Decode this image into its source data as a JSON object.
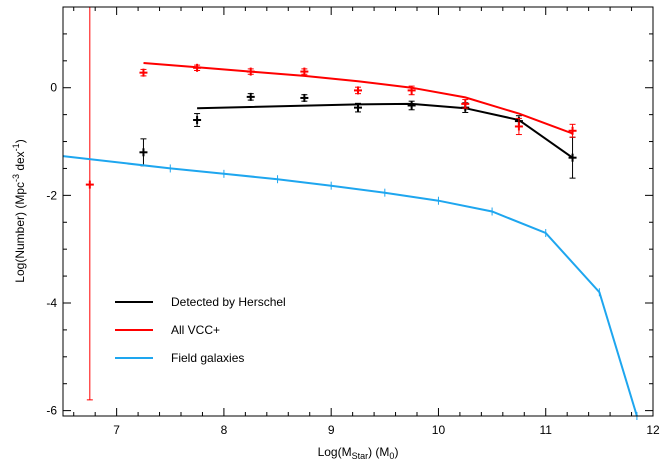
{
  "chart_data": {
    "type": "line",
    "title": "",
    "xlabel_main": "Log(M",
    "xlabel_sub": "Star",
    "xlabel_tail": ") (M",
    "xlabel_sun_sub": "0",
    "xlabel_end": ")",
    "ylabel_main": "Log(Number) (Mpc",
    "ylabel_sup1": "-3",
    "ylabel_mid": " dex",
    "ylabel_sup2": "-1",
    "ylabel_end": ")",
    "xlim": [
      6.5,
      12
    ],
    "ylim": [
      -6.1,
      1.5
    ],
    "xticks": [
      7,
      8,
      9,
      10,
      11,
      12
    ],
    "yticks": [
      -6,
      -4,
      -2,
      0
    ],
    "legend_position": "bottom-left",
    "series": [
      {
        "name": "Detected by Herschel",
        "color": "#000000",
        "line_x": [
          7.75,
          9.25,
          9.75,
          10.25,
          10.75,
          11.25
        ],
        "line_y": [
          -0.38,
          -0.31,
          -0.3,
          -0.38,
          -0.6,
          -1.3
        ],
        "points": [
          {
            "x": 7.25,
            "y": -1.2,
            "err": 0.25
          },
          {
            "x": 7.75,
            "y": -0.6,
            "err": 0.12
          },
          {
            "x": 8.25,
            "y": -0.17,
            "err": 0.06
          },
          {
            "x": 8.75,
            "y": -0.19,
            "err": 0.06
          },
          {
            "x": 9.25,
            "y": -0.37,
            "err": 0.08
          },
          {
            "x": 9.75,
            "y": -0.33,
            "err": 0.08
          },
          {
            "x": 10.25,
            "y": -0.37,
            "err": 0.09
          },
          {
            "x": 10.75,
            "y": -0.62,
            "err": 0.1
          },
          {
            "x": 11.25,
            "y": -1.3,
            "err": 0.38
          }
        ]
      },
      {
        "name": "All VCC+",
        "color": "#ff0000",
        "line_x": [
          7.25,
          7.75,
          8.25,
          8.75,
          9.25,
          9.75,
          10.25,
          10.75,
          11.25
        ],
        "line_y": [
          0.46,
          0.38,
          0.3,
          0.22,
          0.12,
          0.0,
          -0.18,
          -0.48,
          -0.85
        ],
        "points": [
          {
            "x": 6.75,
            "y": -1.8,
            "err": 4.0
          },
          {
            "x": 7.25,
            "y": 0.28,
            "err": 0.06
          },
          {
            "x": 7.75,
            "y": 0.37,
            "err": 0.05
          },
          {
            "x": 8.25,
            "y": 0.3,
            "err": 0.05
          },
          {
            "x": 8.75,
            "y": 0.3,
            "err": 0.05
          },
          {
            "x": 9.25,
            "y": -0.05,
            "err": 0.06
          },
          {
            "x": 9.75,
            "y": -0.05,
            "err": 0.08
          },
          {
            "x": 10.25,
            "y": -0.3,
            "err": 0.08
          },
          {
            "x": 10.75,
            "y": -0.72,
            "err": 0.15
          },
          {
            "x": 11.25,
            "y": -0.8,
            "err": 0.12
          }
        ]
      },
      {
        "name": "Field galaxies",
        "color": "#1ea6ef",
        "line_x": [
          6.5,
          7.5,
          8.0,
          8.5,
          9.0,
          9.5,
          10.0,
          10.5,
          11.0,
          11.5,
          11.85
        ],
        "line_y": [
          -1.27,
          -1.5,
          -1.6,
          -1.7,
          -1.82,
          -1.95,
          -2.1,
          -2.3,
          -2.7,
          -3.8,
          -6.1
        ],
        "ticks_x": [
          7.5,
          8.0,
          8.5,
          9.0,
          9.5,
          10.0,
          10.5,
          11.0,
          11.5,
          11.85
        ],
        "ticks_y": [
          -1.5,
          -1.6,
          -1.7,
          -1.82,
          -1.95,
          -2.1,
          -2.3,
          -2.7,
          -3.8,
          -6.1
        ]
      }
    ]
  }
}
